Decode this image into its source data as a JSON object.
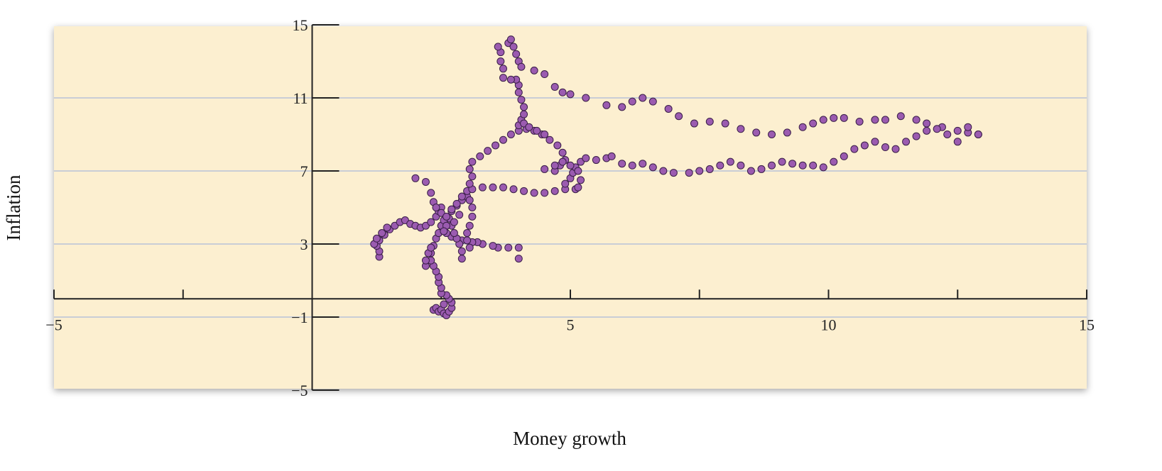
{
  "chart_data": {
    "type": "scatter",
    "title": "",
    "xlabel": "Money growth",
    "ylabel": "Inflation",
    "xlim": [
      -5,
      15
    ],
    "ylim": [
      -5,
      15
    ],
    "x_ticks": [
      -5,
      -2.5,
      0,
      2.5,
      5,
      7.5,
      10,
      12.5,
      15
    ],
    "x_tick_labels": [
      {
        "value": -5,
        "label": "−5"
      },
      {
        "value": 5,
        "label": "5"
      },
      {
        "value": 10,
        "label": "10"
      },
      {
        "value": 15,
        "label": "15"
      }
    ],
    "y_ticks": [
      -5,
      -1,
      3,
      7,
      11,
      15
    ],
    "y_tick_labels": [
      {
        "value": 15,
        "label": "15"
      },
      {
        "value": 11,
        "label": "11"
      },
      {
        "value": 7,
        "label": "7"
      },
      {
        "value": 3,
        "label": "3"
      },
      {
        "value": -1,
        "label": "−1"
      },
      {
        "value": -5,
        "label": "−5"
      }
    ],
    "grid": true,
    "grid_lines_y": [
      11,
      7,
      3,
      -1
    ],
    "colors": {
      "plot_background": "#fcefd0",
      "point_fill": "#9b5bb0",
      "point_stroke": "#3a1f47",
      "grid": "#c9cdd6",
      "axis": "#222222"
    },
    "series": [
      {
        "points": [
          [
            4.0,
            2.2
          ],
          [
            4.0,
            2.8
          ],
          [
            3.8,
            2.8
          ],
          [
            3.6,
            2.8
          ],
          [
            3.5,
            2.9
          ],
          [
            3.3,
            3.0
          ],
          [
            3.2,
            3.1
          ],
          [
            3.1,
            3.1
          ],
          [
            3.0,
            3.2
          ],
          [
            2.9,
            3.2
          ],
          [
            2.8,
            3.3
          ],
          [
            2.7,
            3.4
          ],
          [
            2.6,
            3.6
          ],
          [
            2.55,
            3.8
          ],
          [
            2.5,
            4.0
          ],
          [
            2.9,
            2.2
          ],
          [
            2.9,
            2.6
          ],
          [
            2.85,
            3.0
          ],
          [
            2.8,
            3.3
          ],
          [
            2.75,
            3.6
          ],
          [
            2.7,
            4.0
          ],
          [
            2.65,
            4.4
          ],
          [
            2.7,
            4.8
          ],
          [
            2.8,
            5.1
          ],
          [
            2.9,
            5.4
          ],
          [
            3.0,
            5.6
          ],
          [
            2.35,
            -0.6
          ],
          [
            2.4,
            -0.5
          ],
          [
            2.45,
            -0.7
          ],
          [
            2.5,
            -0.6
          ],
          [
            2.55,
            -0.8
          ],
          [
            2.6,
            -0.9
          ],
          [
            2.65,
            -0.7
          ],
          [
            2.7,
            -0.5
          ],
          [
            2.7,
            -0.2
          ],
          [
            2.65,
            0.0
          ],
          [
            2.6,
            0.2
          ],
          [
            2.55,
            -0.3
          ],
          [
            2.5,
            0.3
          ],
          [
            2.5,
            0.6
          ],
          [
            2.45,
            0.9
          ],
          [
            2.45,
            1.2
          ],
          [
            2.4,
            1.5
          ],
          [
            2.35,
            1.8
          ],
          [
            2.3,
            2.1
          ],
          [
            2.3,
            2.5
          ],
          [
            2.35,
            2.9
          ],
          [
            2.4,
            3.3
          ],
          [
            2.45,
            3.6
          ],
          [
            2.5,
            4.0
          ],
          [
            2.55,
            4.3
          ],
          [
            2.2,
            1.8
          ],
          [
            2.2,
            2.1
          ],
          [
            2.25,
            2.5
          ],
          [
            2.3,
            2.8
          ],
          [
            1.3,
            2.3
          ],
          [
            1.3,
            2.6
          ],
          [
            1.25,
            2.9
          ],
          [
            1.3,
            3.2
          ],
          [
            1.4,
            3.5
          ],
          [
            1.5,
            3.8
          ],
          [
            1.6,
            4.0
          ],
          [
            1.7,
            4.2
          ],
          [
            1.8,
            4.3
          ],
          [
            1.9,
            4.1
          ],
          [
            2.0,
            4.0
          ],
          [
            2.1,
            3.9
          ],
          [
            2.2,
            4.0
          ],
          [
            2.3,
            4.2
          ],
          [
            2.4,
            4.5
          ],
          [
            2.45,
            4.8
          ],
          [
            2.5,
            5.0
          ],
          [
            1.2,
            3.0
          ],
          [
            1.25,
            3.3
          ],
          [
            1.35,
            3.6
          ],
          [
            1.45,
            3.9
          ],
          [
            2.0,
            6.6
          ],
          [
            2.2,
            6.4
          ],
          [
            2.3,
            5.8
          ],
          [
            2.35,
            5.3
          ],
          [
            2.4,
            5.0
          ],
          [
            2.5,
            4.7
          ],
          [
            2.6,
            4.5
          ],
          [
            2.7,
            4.9
          ],
          [
            2.8,
            5.2
          ],
          [
            2.85,
            4.6
          ],
          [
            2.75,
            4.2
          ],
          [
            2.6,
            4.0
          ],
          [
            2.55,
            3.7
          ],
          [
            2.9,
            5.6
          ],
          [
            3.0,
            5.9
          ],
          [
            3.1,
            6.0
          ],
          [
            3.3,
            6.1
          ],
          [
            3.5,
            6.1
          ],
          [
            3.7,
            6.1
          ],
          [
            3.9,
            6.0
          ],
          [
            4.1,
            5.9
          ],
          [
            4.3,
            5.8
          ],
          [
            4.5,
            5.8
          ],
          [
            4.7,
            5.9
          ],
          [
            4.9,
            6.0
          ],
          [
            5.1,
            6.0
          ],
          [
            3.05,
            6.3
          ],
          [
            3.1,
            6.7
          ],
          [
            3.05,
            7.1
          ],
          [
            3.1,
            7.5
          ],
          [
            3.25,
            7.8
          ],
          [
            3.4,
            8.1
          ],
          [
            3.55,
            8.4
          ],
          [
            3.7,
            8.7
          ],
          [
            3.85,
            9.0
          ],
          [
            4.0,
            9.2
          ],
          [
            4.15,
            9.3
          ],
          [
            4.3,
            9.2
          ],
          [
            4.45,
            9.0
          ],
          [
            4.6,
            8.7
          ],
          [
            4.75,
            8.4
          ],
          [
            4.85,
            8.0
          ],
          [
            4.9,
            7.6
          ],
          [
            4.8,
            7.3
          ],
          [
            4.7,
            7.0
          ],
          [
            3.05,
            2.8
          ],
          [
            3.0,
            3.2
          ],
          [
            3.0,
            3.6
          ],
          [
            3.05,
            4.0
          ],
          [
            3.1,
            4.5
          ],
          [
            3.1,
            5.0
          ],
          [
            3.05,
            5.4
          ],
          [
            4.0,
            9.5
          ],
          [
            4.05,
            9.8
          ],
          [
            4.1,
            10.1
          ],
          [
            4.1,
            10.5
          ],
          [
            4.05,
            10.9
          ],
          [
            4.0,
            11.3
          ],
          [
            4.0,
            11.7
          ],
          [
            3.95,
            12.0
          ],
          [
            3.85,
            12.0
          ],
          [
            3.7,
            12.1
          ],
          [
            3.7,
            12.6
          ],
          [
            3.65,
            13.0
          ],
          [
            3.65,
            13.5
          ],
          [
            3.6,
            13.8
          ],
          [
            3.8,
            14.0
          ],
          [
            3.85,
            14.2
          ],
          [
            3.9,
            13.8
          ],
          [
            3.95,
            13.4
          ],
          [
            4.0,
            13.0
          ],
          [
            4.05,
            12.7
          ],
          [
            4.1,
            9.6
          ],
          [
            4.2,
            9.4
          ],
          [
            4.35,
            9.2
          ],
          [
            4.5,
            9.0
          ],
          [
            4.9,
            6.3
          ],
          [
            5.0,
            6.6
          ],
          [
            5.05,
            6.9
          ],
          [
            5.1,
            7.2
          ],
          [
            5.2,
            7.5
          ],
          [
            5.3,
            7.7
          ],
          [
            5.5,
            7.6
          ],
          [
            5.7,
            7.7
          ],
          [
            5.8,
            7.8
          ],
          [
            4.5,
            7.1
          ],
          [
            4.7,
            7.3
          ],
          [
            4.85,
            7.5
          ],
          [
            5.0,
            7.3
          ],
          [
            5.15,
            7.0
          ],
          [
            5.2,
            6.5
          ],
          [
            5.15,
            6.1
          ],
          [
            4.3,
            12.5
          ],
          [
            4.5,
            12.3
          ],
          [
            4.7,
            11.6
          ],
          [
            4.85,
            11.3
          ],
          [
            5.0,
            11.2
          ],
          [
            5.3,
            11.0
          ],
          [
            5.7,
            10.6
          ],
          [
            6.0,
            10.5
          ],
          [
            6.2,
            10.8
          ],
          [
            6.4,
            11.0
          ],
          [
            6.6,
            10.8
          ],
          [
            6.9,
            10.4
          ],
          [
            7.1,
            10.0
          ],
          [
            7.4,
            9.6
          ],
          [
            7.7,
            9.7
          ],
          [
            8.0,
            9.6
          ],
          [
            8.3,
            9.3
          ],
          [
            8.6,
            9.1
          ],
          [
            8.9,
            9.0
          ],
          [
            9.2,
            9.1
          ],
          [
            9.5,
            9.4
          ],
          [
            9.7,
            9.6
          ],
          [
            9.9,
            9.8
          ],
          [
            10.1,
            9.9
          ],
          [
            10.3,
            9.9
          ],
          [
            10.6,
            9.7
          ],
          [
            10.9,
            9.8
          ],
          [
            11.1,
            9.8
          ],
          [
            11.4,
            10.0
          ],
          [
            11.7,
            9.8
          ],
          [
            11.9,
            9.6
          ],
          [
            12.2,
            9.4
          ],
          [
            12.5,
            9.2
          ],
          [
            12.7,
            9.1
          ],
          [
            12.9,
            9.0
          ],
          [
            6.0,
            7.4
          ],
          [
            6.2,
            7.3
          ],
          [
            6.4,
            7.4
          ],
          [
            6.6,
            7.2
          ],
          [
            6.8,
            7.0
          ],
          [
            7.0,
            6.9
          ],
          [
            7.3,
            6.9
          ],
          [
            7.5,
            7.0
          ],
          [
            7.7,
            7.1
          ],
          [
            7.9,
            7.3
          ],
          [
            8.1,
            7.5
          ],
          [
            8.3,
            7.3
          ],
          [
            8.5,
            7.0
          ],
          [
            8.7,
            7.1
          ],
          [
            8.9,
            7.3
          ],
          [
            9.1,
            7.5
          ],
          [
            9.3,
            7.4
          ],
          [
            9.5,
            7.3
          ],
          [
            9.7,
            7.3
          ],
          [
            9.9,
            7.2
          ],
          [
            10.1,
            7.5
          ],
          [
            10.3,
            7.8
          ],
          [
            10.5,
            8.2
          ],
          [
            10.7,
            8.4
          ],
          [
            10.9,
            8.6
          ],
          [
            11.1,
            8.3
          ],
          [
            11.3,
            8.2
          ],
          [
            11.5,
            8.6
          ],
          [
            11.7,
            8.9
          ],
          [
            11.9,
            9.2
          ],
          [
            12.1,
            9.3
          ],
          [
            12.3,
            9.0
          ],
          [
            12.5,
            8.6
          ],
          [
            12.7,
            9.4
          ],
          [
            12.9,
            9.0
          ]
        ]
      }
    ]
  }
}
